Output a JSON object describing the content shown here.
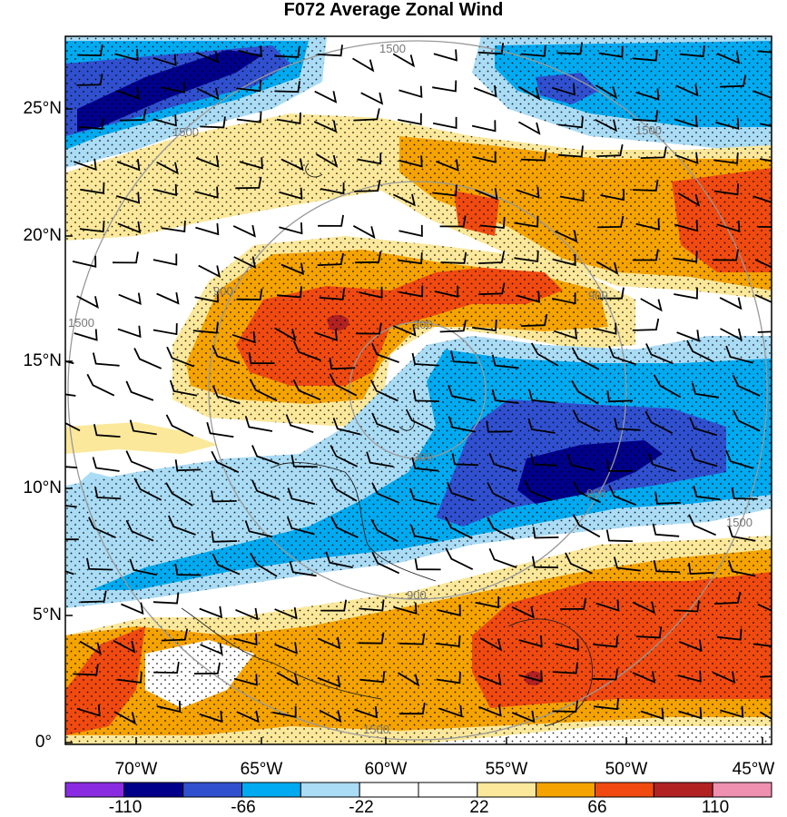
{
  "title": "F072 Average Zonal Wind",
  "map": {
    "lat_ticks": [
      {
        "lat": 25,
        "label": "25°N"
      },
      {
        "lat": 20,
        "label": "20°N"
      },
      {
        "lat": 15,
        "label": "15°N"
      },
      {
        "lat": 10,
        "label": "10°N"
      },
      {
        "lat": 5,
        "label": "5°N"
      },
      {
        "lat": 0,
        "label": "0°"
      }
    ],
    "lon_ticks": [
      {
        "lon": -70,
        "label": "70°W"
      },
      {
        "lon": -65,
        "label": "65°W"
      },
      {
        "lon": -60,
        "label": "60°W"
      },
      {
        "lon": -55,
        "label": "55°W"
      },
      {
        "lon": -50,
        "label": "50°W"
      },
      {
        "lon": -45,
        "label": "45°W"
      }
    ],
    "range_ring_labels": [
      "300",
      "900",
      "1500"
    ],
    "colorbar": {
      "colors": [
        "#8a2be2",
        "#00008b",
        "#3050d0",
        "#00aaf0",
        "#aadcf5",
        "#ffffff",
        "#ffffff",
        "#fbe89a",
        "#f5a300",
        "#f04a10",
        "#b22222",
        "#f090b0"
      ],
      "labels": [
        "-110",
        "-66",
        "-22",
        "22",
        "66",
        "110"
      ]
    },
    "colors": {
      "strong_pos": "#f04a10",
      "pos": "#f5a300",
      "weak_pos": "#fbe89a",
      "weak_neg": "#aadcf5",
      "neg": "#00aaf0",
      "strong_neg": "#3050d0",
      "very_strong_neg": "#00008b",
      "extreme_pos": "#b22222"
    }
  }
}
